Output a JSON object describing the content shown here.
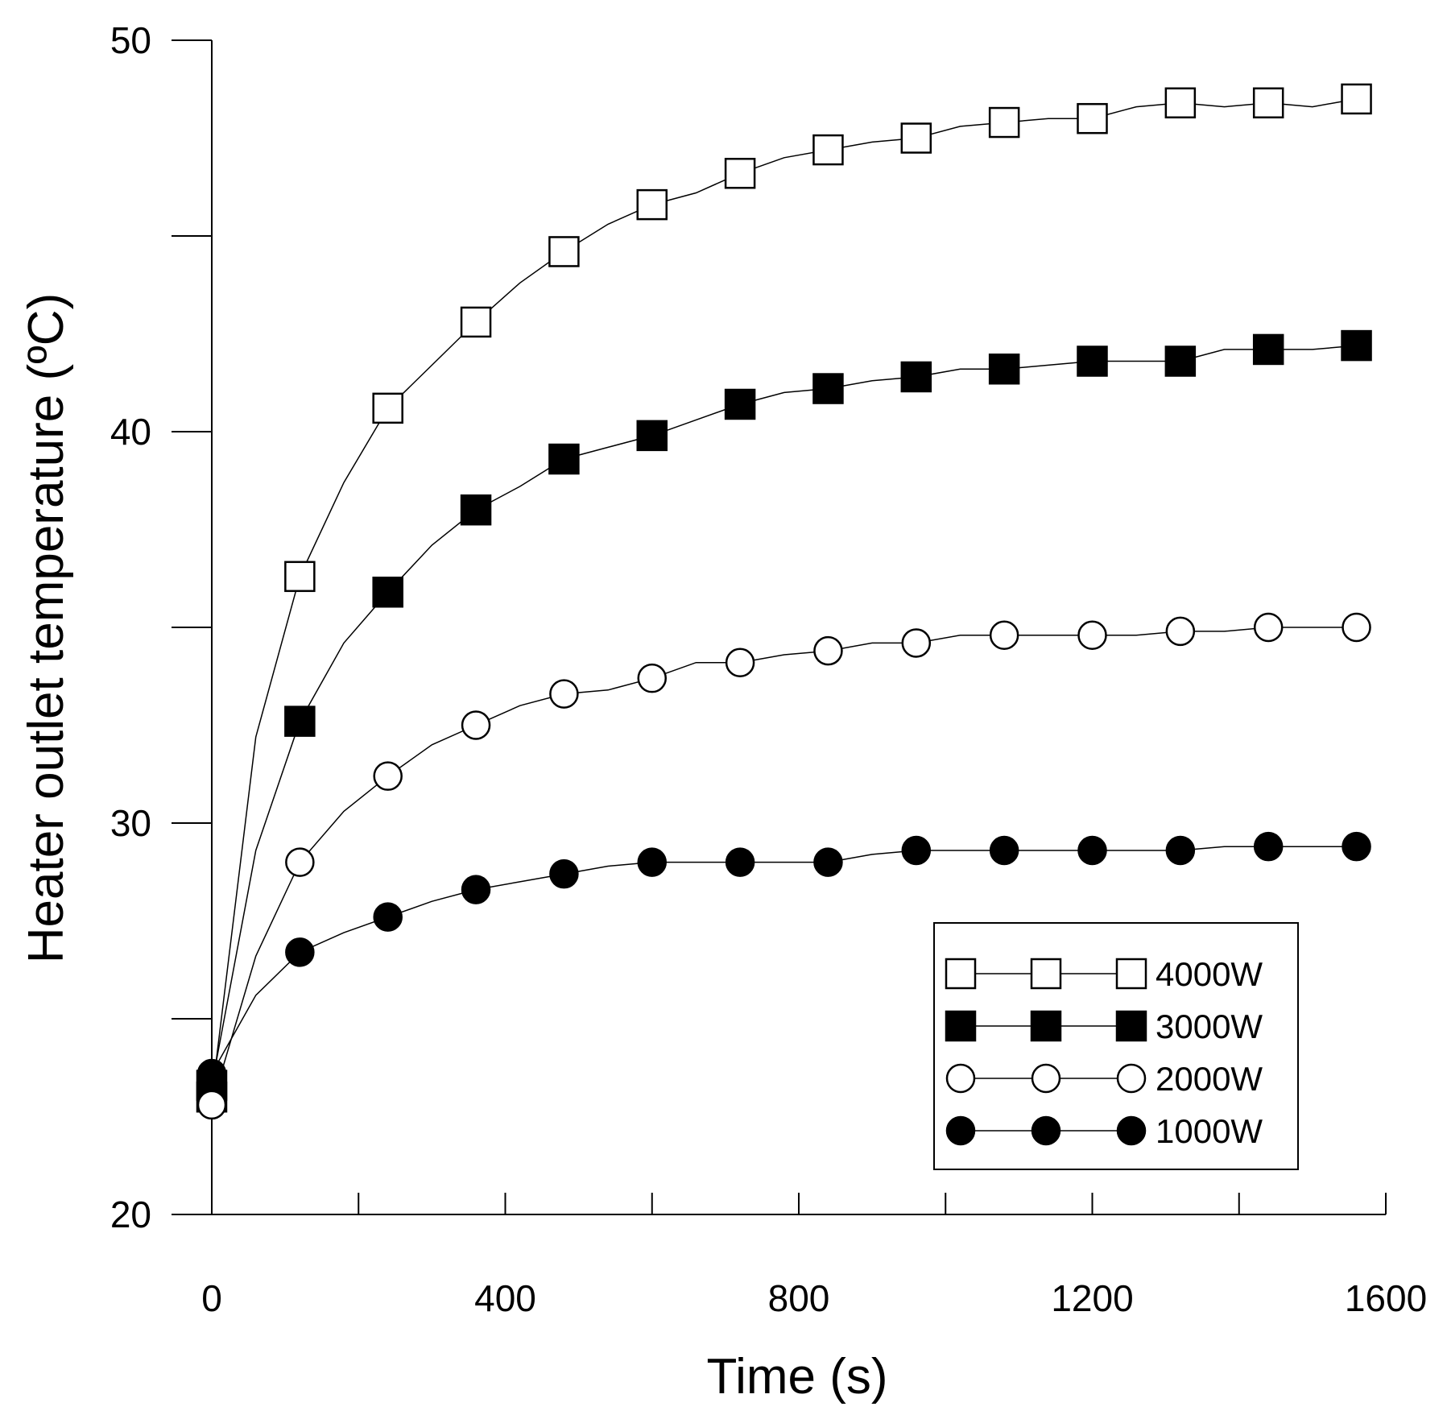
{
  "chart_data": {
    "type": "line",
    "title": "",
    "xlabel": "Time (s)",
    "ylabel": "Heater outlet temperature (ºC)",
    "xlim": [
      0,
      1600
    ],
    "ylim": [
      20,
      50
    ],
    "xticks": [
      0,
      400,
      800,
      1200,
      1600
    ],
    "xtick_labels": [
      "0",
      "400",
      "800",
      "1200",
      "1600"
    ],
    "xminor_step": 200,
    "yticks": [
      20,
      30,
      40,
      50
    ],
    "ytick_labels": [
      "20",
      "30",
      "40",
      "50"
    ],
    "yminor_step": 5,
    "grid": false,
    "legend_position": "bottom-right",
    "series": [
      {
        "name": "4000W",
        "marker": "square-open",
        "x": [
          0,
          120,
          240,
          360,
          480,
          600,
          720,
          840,
          960,
          1080,
          1200,
          1320,
          1440,
          1560
        ],
        "y": [
          23.0,
          36.3,
          40.6,
          42.8,
          44.6,
          45.8,
          46.6,
          47.2,
          47.5,
          47.9,
          48.0,
          48.4,
          48.4,
          48.5
        ],
        "curve": [
          [
            0,
            23.0
          ],
          [
            60,
            32.2
          ],
          [
            120,
            36.3
          ],
          [
            180,
            38.7
          ],
          [
            240,
            40.6
          ],
          [
            300,
            41.7
          ],
          [
            360,
            42.8
          ],
          [
            420,
            43.8
          ],
          [
            480,
            44.6
          ],
          [
            540,
            45.3
          ],
          [
            600,
            45.8
          ],
          [
            660,
            46.1
          ],
          [
            720,
            46.6
          ],
          [
            780,
            47.0
          ],
          [
            840,
            47.2
          ],
          [
            900,
            47.4
          ],
          [
            960,
            47.5
          ],
          [
            1020,
            47.8
          ],
          [
            1080,
            47.9
          ],
          [
            1140,
            48.0
          ],
          [
            1200,
            48.0
          ],
          [
            1260,
            48.3
          ],
          [
            1320,
            48.4
          ],
          [
            1380,
            48.3
          ],
          [
            1440,
            48.4
          ],
          [
            1500,
            48.3
          ],
          [
            1560,
            48.5
          ]
        ]
      },
      {
        "name": "3000W",
        "marker": "square-filled",
        "x": [
          0,
          120,
          240,
          360,
          480,
          600,
          720,
          840,
          960,
          1080,
          1200,
          1320,
          1440,
          1560
        ],
        "y": [
          23.3,
          32.6,
          35.9,
          38.0,
          39.3,
          39.9,
          40.7,
          41.1,
          41.4,
          41.6,
          41.8,
          41.8,
          42.1,
          42.2
        ],
        "curve": [
          [
            0,
            23.3
          ],
          [
            60,
            29.3
          ],
          [
            120,
            32.6
          ],
          [
            180,
            34.6
          ],
          [
            240,
            35.9
          ],
          [
            300,
            37.1
          ],
          [
            360,
            38.0
          ],
          [
            420,
            38.6
          ],
          [
            480,
            39.3
          ],
          [
            540,
            39.6
          ],
          [
            600,
            39.9
          ],
          [
            660,
            40.3
          ],
          [
            720,
            40.7
          ],
          [
            780,
            41.0
          ],
          [
            840,
            41.1
          ],
          [
            900,
            41.3
          ],
          [
            960,
            41.4
          ],
          [
            1020,
            41.6
          ],
          [
            1080,
            41.6
          ],
          [
            1140,
            41.7
          ],
          [
            1200,
            41.8
          ],
          [
            1260,
            41.8
          ],
          [
            1320,
            41.8
          ],
          [
            1380,
            42.1
          ],
          [
            1440,
            42.1
          ],
          [
            1500,
            42.1
          ],
          [
            1560,
            42.2
          ]
        ]
      },
      {
        "name": "2000W",
        "marker": "circle-open",
        "x": [
          0,
          120,
          240,
          360,
          480,
          600,
          720,
          840,
          960,
          1080,
          1200,
          1320,
          1440,
          1560
        ],
        "y": [
          22.8,
          29.0,
          31.2,
          32.5,
          33.3,
          33.7,
          34.1,
          34.4,
          34.6,
          34.8,
          34.8,
          34.9,
          35.0,
          35.0
        ],
        "curve": [
          [
            0,
            22.8
          ],
          [
            60,
            26.6
          ],
          [
            120,
            29.0
          ],
          [
            180,
            30.3
          ],
          [
            240,
            31.2
          ],
          [
            300,
            32.0
          ],
          [
            360,
            32.5
          ],
          [
            420,
            33.0
          ],
          [
            480,
            33.3
          ],
          [
            540,
            33.4
          ],
          [
            600,
            33.7
          ],
          [
            660,
            34.1
          ],
          [
            720,
            34.1
          ],
          [
            780,
            34.3
          ],
          [
            840,
            34.4
          ],
          [
            900,
            34.6
          ],
          [
            960,
            34.6
          ],
          [
            1020,
            34.8
          ],
          [
            1080,
            34.8
          ],
          [
            1140,
            34.8
          ],
          [
            1200,
            34.8
          ],
          [
            1260,
            34.8
          ],
          [
            1320,
            34.9
          ],
          [
            1380,
            34.9
          ],
          [
            1440,
            35.0
          ],
          [
            1500,
            35.0
          ],
          [
            1560,
            35.0
          ]
        ]
      },
      {
        "name": "1000W",
        "marker": "circle-filled",
        "x": [
          0,
          120,
          240,
          360,
          480,
          600,
          720,
          840,
          960,
          1080,
          1200,
          1320,
          1440,
          1560
        ],
        "y": [
          23.6,
          26.7,
          27.6,
          28.3,
          28.7,
          29.0,
          29.0,
          29.0,
          29.3,
          29.3,
          29.3,
          29.3,
          29.4,
          29.4
        ],
        "curve": [
          [
            0,
            23.6
          ],
          [
            60,
            25.6
          ],
          [
            120,
            26.7
          ],
          [
            180,
            27.2
          ],
          [
            240,
            27.6
          ],
          [
            300,
            28.0
          ],
          [
            360,
            28.3
          ],
          [
            420,
            28.5
          ],
          [
            480,
            28.7
          ],
          [
            540,
            28.9
          ],
          [
            600,
            29.0
          ],
          [
            660,
            29.0
          ],
          [
            720,
            29.0
          ],
          [
            780,
            29.0
          ],
          [
            840,
            29.0
          ],
          [
            900,
            29.2
          ],
          [
            960,
            29.3
          ],
          [
            1020,
            29.3
          ],
          [
            1080,
            29.3
          ],
          [
            1140,
            29.3
          ],
          [
            1200,
            29.3
          ],
          [
            1260,
            29.3
          ],
          [
            1320,
            29.3
          ],
          [
            1380,
            29.4
          ],
          [
            1440,
            29.4
          ],
          [
            1500,
            29.4
          ],
          [
            1560,
            29.4
          ]
        ]
      }
    ]
  }
}
